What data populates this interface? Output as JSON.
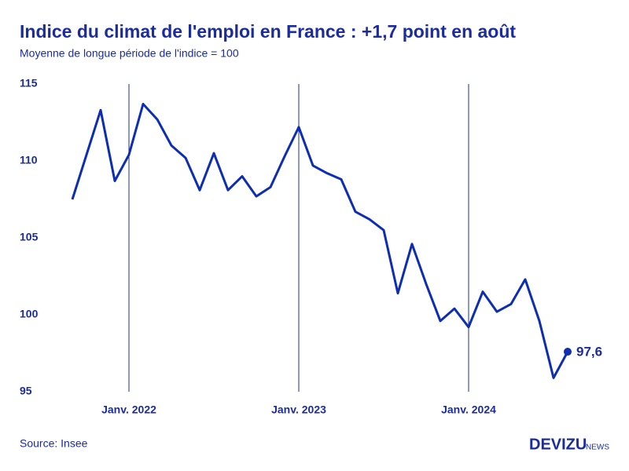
{
  "chart_data": {
    "type": "line",
    "title": "Indice du climat de l'emploi en France : +1,7 point en août",
    "subtitle": "Moyenne de longue période de l'indice = 100",
    "source": "Source: Insee",
    "brand": "DEVIZU",
    "brand_suffix": "NEWS",
    "categories": [
      null,
      null,
      null,
      null,
      "Janv. 2022",
      null,
      null,
      null,
      null,
      null,
      null,
      null,
      null,
      null,
      null,
      null,
      "Janv. 2023",
      null,
      null,
      null,
      null,
      null,
      null,
      null,
      null,
      null,
      null,
      null,
      "Janv. 2024",
      null,
      null,
      null,
      null,
      null,
      null,
      null
    ],
    "series": [
      {
        "name": "Indice du climat de l'emploi",
        "color": "#0d2db3",
        "values": [
          107.5,
          110.4,
          113.3,
          108.7,
          110.4,
          113.7,
          112.7,
          111.0,
          110.2,
          108.1,
          110.5,
          108.1,
          109.0,
          107.7,
          108.3,
          110.3,
          112.2,
          109.7,
          109.2,
          108.8,
          106.7,
          106.2,
          105.5,
          101.4,
          104.6,
          102.0,
          99.6,
          100.4,
          99.2,
          101.5,
          100.2,
          100.7,
          102.3,
          99.6,
          95.9,
          97.6
        ],
        "value_labels": [
          null,
          null,
          null,
          null,
          null,
          null,
          null,
          null,
          null,
          null,
          null,
          null,
          null,
          null,
          null,
          null,
          null,
          null,
          null,
          null,
          null,
          null,
          null,
          null,
          null,
          null,
          null,
          null,
          null,
          null,
          null,
          null,
          null,
          null,
          null,
          "97,6"
        ]
      }
    ],
    "ylim": [
      95,
      115
    ],
    "yticks": [
      95,
      100,
      105,
      110,
      115
    ],
    "x_grid": true
  }
}
